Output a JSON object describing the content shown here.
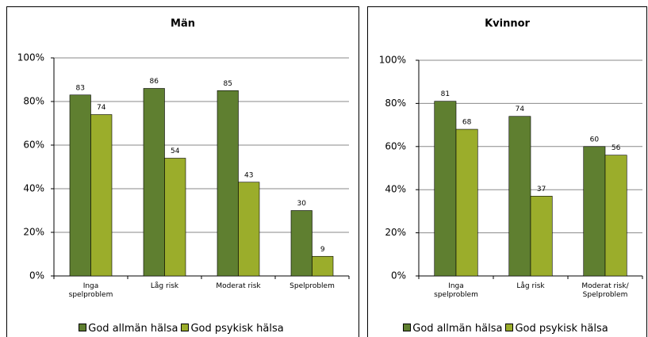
{
  "chart_data": [
    {
      "type": "bar",
      "title": "Män",
      "categories": [
        "Inga\nspelproblem",
        "Låg risk",
        "Moderat risk",
        "Spelproblem"
      ],
      "series": [
        {
          "name": "God allmän hälsa",
          "color": "#5f7f30",
          "values": [
            83,
            86,
            85,
            30
          ]
        },
        {
          "name": "God psykisk hälsa",
          "color": "#9bad2b",
          "values": [
            74,
            54,
            43,
            9
          ]
        }
      ],
      "ylim": [
        0,
        100
      ],
      "yticks": [
        {
          "value": 0,
          "label": "0%"
        },
        {
          "value": 20,
          "label": "20%"
        },
        {
          "value": 40,
          "label": "40%"
        },
        {
          "value": 60,
          "label": "60%"
        },
        {
          "value": 80,
          "label": "80%"
        },
        {
          "value": 100,
          "label": "100%"
        }
      ],
      "grid": true
    },
    {
      "type": "bar",
      "title": "Kvinnor",
      "categories": [
        "Inga\nspelproblem",
        "Låg risk",
        "Moderat risk/\nSpelproblem"
      ],
      "series": [
        {
          "name": "God allmän hälsa",
          "color": "#5f7f30",
          "values": [
            81,
            74,
            60
          ]
        },
        {
          "name": "God psykisk hälsa",
          "color": "#9bad2b",
          "values": [
            68,
            37,
            56
          ]
        }
      ],
      "ylim": [
        0,
        100
      ],
      "yticks": [
        {
          "value": 0,
          "label": "0%"
        },
        {
          "value": 20,
          "label": "20%"
        },
        {
          "value": 40,
          "label": "40%"
        },
        {
          "value": 60,
          "label": "60%"
        },
        {
          "value": 80,
          "label": "80%"
        },
        {
          "value": 100,
          "label": "100%"
        }
      ],
      "grid": true
    }
  ]
}
